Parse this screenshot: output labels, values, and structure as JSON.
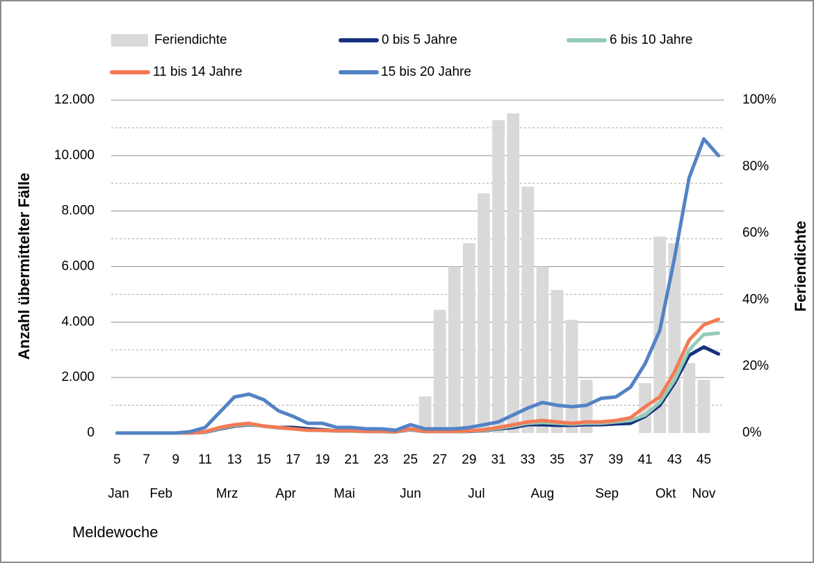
{
  "chart_data": {
    "type": "line",
    "y_label": "Anzahl übermittelter Fälle",
    "y2_label": "Feriendichte",
    "x_label": "Meldewoche",
    "x": [
      5,
      6,
      7,
      8,
      9,
      10,
      11,
      12,
      13,
      14,
      15,
      16,
      17,
      18,
      19,
      20,
      21,
      22,
      23,
      24,
      25,
      26,
      27,
      28,
      29,
      30,
      31,
      32,
      33,
      34,
      35,
      36,
      37,
      38,
      39,
      40,
      41,
      42,
      43,
      44,
      45,
      46
    ],
    "xlim": [
      4.6,
      46.4
    ],
    "xticks": [
      5,
      7,
      9,
      11,
      13,
      15,
      17,
      19,
      21,
      23,
      25,
      27,
      29,
      31,
      33,
      35,
      37,
      39,
      41,
      43,
      45
    ],
    "month_labels": [
      {
        "label": "Jan",
        "x": 5.1
      },
      {
        "label": "Feb",
        "x": 8
      },
      {
        "label": "Mrz",
        "x": 12.5
      },
      {
        "label": "Apr",
        "x": 16.5
      },
      {
        "label": "Mai",
        "x": 20.5
      },
      {
        "label": "Jun",
        "x": 25
      },
      {
        "label": "Jul",
        "x": 29.5
      },
      {
        "label": "Aug",
        "x": 34
      },
      {
        "label": "Sep",
        "x": 38.4
      },
      {
        "label": "Okt",
        "x": 42.4
      },
      {
        "label": "Nov",
        "x": 45
      }
    ],
    "ylim": [
      0,
      12000
    ],
    "yticks": [
      0,
      {
        "value": 2000,
        "label": "2.000"
      },
      {
        "value": 4000,
        "label": "4.000"
      },
      {
        "value": 6000,
        "label": "6.000"
      },
      {
        "value": 8000,
        "label": "8.000"
      },
      {
        "value": 10000,
        "label": "10.000"
      },
      {
        "value": 12000,
        "label": "12.000"
      }
    ],
    "minor_grid": [
      1000,
      3000,
      5000,
      7000,
      9000,
      11000
    ],
    "y2lim": [
      0,
      100
    ],
    "y2ticks": [
      {
        "value": 0,
        "label": "0%"
      },
      {
        "value": 20,
        "label": "20%"
      },
      {
        "value": 40,
        "label": "40%"
      },
      {
        "value": 60,
        "label": "60%"
      },
      {
        "value": 80,
        "label": "80%"
      },
      {
        "value": 100,
        "label": "100%"
      }
    ],
    "grid": true,
    "series": [
      {
        "name": "Feriendichte",
        "type": "bar",
        "axis": "y2",
        "color": "#d9d9d9",
        "values": [
          0,
          0,
          0,
          0,
          0,
          0,
          0,
          0,
          0,
          0,
          0,
          0,
          0,
          0,
          0,
          0,
          0,
          0,
          0,
          0,
          0,
          11,
          37,
          50,
          57,
          72,
          94,
          96,
          74,
          50,
          43,
          34,
          16,
          0,
          0,
          0,
          15,
          59,
          57,
          21,
          16,
          0
        ]
      },
      {
        "name": "0 bis 5 Jahre",
        "color": "#16317d",
        "values": [
          0,
          0,
          0,
          0,
          0,
          0,
          30,
          150,
          250,
          300,
          250,
          200,
          200,
          150,
          120,
          80,
          80,
          60,
          50,
          40,
          120,
          50,
          50,
          50,
          60,
          90,
          150,
          200,
          300,
          300,
          280,
          280,
          300,
          300,
          330,
          350,
          600,
          1000,
          1800,
          2800,
          3100,
          2850
        ]
      },
      {
        "name": "6 bis 10 Jahre",
        "color": "#93cbb8",
        "values": [
          0,
          0,
          0,
          0,
          0,
          0,
          40,
          170,
          270,
          320,
          240,
          180,
          150,
          100,
          90,
          70,
          70,
          50,
          50,
          40,
          130,
          50,
          50,
          50,
          70,
          100,
          170,
          250,
          350,
          380,
          350,
          320,
          350,
          350,
          400,
          450,
          650,
          1100,
          1900,
          3000,
          3550,
          3600
        ]
      },
      {
        "name": "11 bis 14 Jahre",
        "color": "#f47a55",
        "values": [
          0,
          0,
          0,
          0,
          0,
          0,
          50,
          200,
          300,
          350,
          250,
          200,
          150,
          100,
          100,
          80,
          80,
          60,
          60,
          50,
          150,
          60,
          60,
          60,
          80,
          120,
          200,
          300,
          400,
          450,
          400,
          350,
          400,
          400,
          450,
          550,
          950,
          1300,
          2200,
          3350,
          3900,
          4100
        ]
      },
      {
        "name": "15 bis 20 Jahre",
        "color": "#5383c4",
        "values": [
          0,
          0,
          0,
          0,
          0,
          50,
          200,
          750,
          1300,
          1400,
          1200,
          800,
          600,
          350,
          350,
          200,
          200,
          150,
          150,
          100,
          300,
          150,
          150,
          150,
          200,
          300,
          400,
          650,
          900,
          1100,
          1000,
          950,
          1000,
          1250,
          1300,
          1650,
          2500,
          3700,
          6300,
          9200,
          10600,
          10000
        ]
      }
    ]
  }
}
